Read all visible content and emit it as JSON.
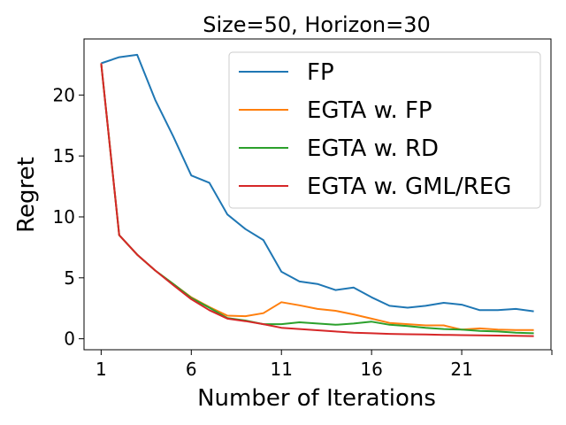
{
  "chart_data": {
    "type": "line",
    "title": "Size=50, Horizon=30",
    "xlabel": "Number of Iterations",
    "ylabel": "Regret",
    "xlim": [
      0.05,
      25.95
    ],
    "ylim": [
      -0.9,
      24.6
    ],
    "xticks": [
      1,
      6,
      11,
      16,
      21,
      26
    ],
    "xtick_labels": [
      "1",
      "6",
      "11",
      "16",
      "21",
      ""
    ],
    "yticks": [
      0,
      5,
      10,
      15,
      20
    ],
    "ytick_labels": [
      "0",
      "5",
      "10",
      "15",
      "20"
    ],
    "legend_position": "top-right",
    "x": [
      1,
      2,
      3,
      4,
      5,
      6,
      7,
      8,
      9,
      10,
      11,
      12,
      13,
      14,
      15,
      16,
      17,
      18,
      19,
      20,
      21,
      22,
      23,
      24,
      25
    ],
    "series": [
      {
        "name": "FP",
        "color": "#1f77b4",
        "values": [
          22.6,
          23.1,
          23.3,
          19.6,
          16.6,
          13.4,
          12.8,
          10.2,
          9.0,
          8.1,
          5.5,
          4.7,
          4.5,
          4.0,
          4.2,
          3.4,
          2.7,
          2.55,
          2.7,
          2.95,
          2.8,
          2.35,
          2.35,
          2.45,
          2.25
        ]
      },
      {
        "name": "EGTA w. FP",
        "color": "#ff7f0e",
        "values": [
          22.6,
          8.5,
          6.9,
          5.6,
          4.5,
          3.4,
          2.6,
          1.9,
          1.85,
          2.1,
          3.0,
          2.75,
          2.45,
          2.3,
          2.0,
          1.65,
          1.3,
          1.2,
          1.1,
          1.1,
          0.75,
          0.85,
          0.75,
          0.72,
          0.72
        ]
      },
      {
        "name": "EGTA w. RD",
        "color": "#2ca02c",
        "values": [
          22.6,
          8.5,
          6.9,
          5.6,
          4.5,
          3.35,
          2.55,
          1.7,
          1.5,
          1.2,
          1.2,
          1.35,
          1.25,
          1.15,
          1.25,
          1.4,
          1.15,
          1.05,
          0.9,
          0.8,
          0.75,
          0.65,
          0.6,
          0.5,
          0.45
        ]
      },
      {
        "name": "EGTA w. GML/REG",
        "color": "#d62728",
        "values": [
          22.6,
          8.5,
          6.9,
          5.6,
          4.4,
          3.25,
          2.35,
          1.65,
          1.45,
          1.2,
          0.9,
          0.8,
          0.7,
          0.6,
          0.5,
          0.45,
          0.4,
          0.37,
          0.35,
          0.32,
          0.3,
          0.28,
          0.26,
          0.24,
          0.22
        ]
      }
    ]
  }
}
